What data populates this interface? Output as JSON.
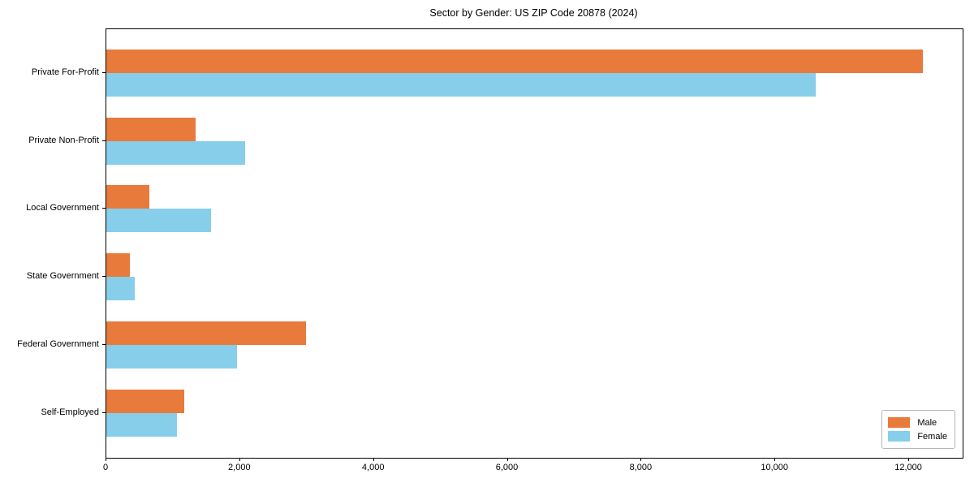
{
  "chart_data": {
    "type": "bar",
    "orientation": "horizontal",
    "title": "Sector by Gender: US ZIP Code 20878 (2024)",
    "categories": [
      "Private For-Profit",
      "Private Non-Profit",
      "Local Government",
      "State Government",
      "Federal Government",
      "Self-Employed"
    ],
    "series": [
      {
        "name": "Male",
        "color": "#E87A3C",
        "values": [
          12200,
          1340,
          640,
          350,
          2980,
          1170
        ]
      },
      {
        "name": "Female",
        "color": "#87CEEB",
        "values": [
          10600,
          2070,
          1560,
          430,
          1950,
          1060
        ]
      }
    ],
    "xlabel": "",
    "ylabel": "",
    "xlim": [
      0,
      12800
    ],
    "x_ticks": [
      0,
      2000,
      4000,
      6000,
      8000,
      10000,
      12000
    ],
    "x_tick_labels": [
      "0",
      "2,000",
      "4,000",
      "6,000",
      "8,000",
      "10,000",
      "12,000"
    ],
    "grid": false,
    "legend_position": "lower-right",
    "spine_color": "#000000",
    "background_color": "#ffffff"
  }
}
